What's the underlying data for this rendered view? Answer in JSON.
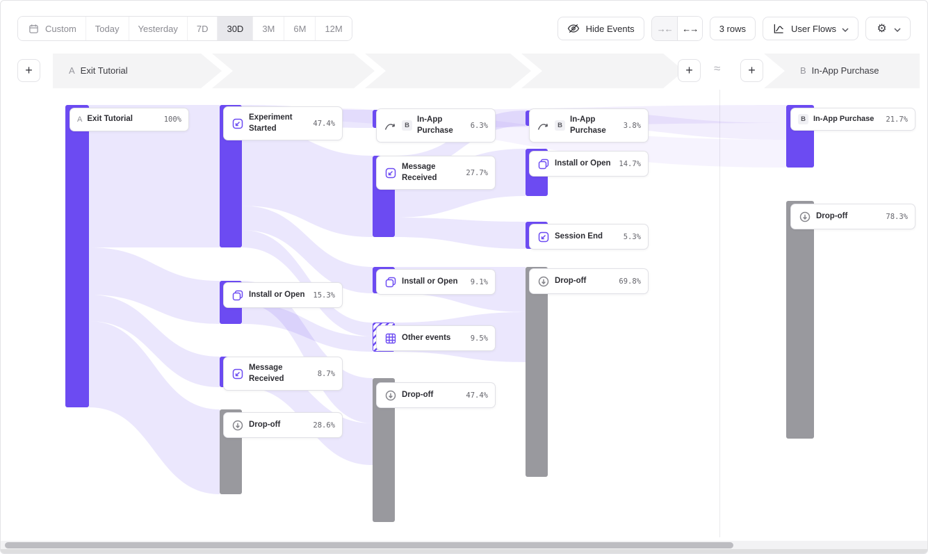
{
  "toolbar": {
    "ranges": [
      {
        "label": "Custom"
      },
      {
        "label": "Today"
      },
      {
        "label": "Yesterday"
      },
      {
        "label": "7D"
      },
      {
        "label": "30D",
        "selected": true
      },
      {
        "label": "3M"
      },
      {
        "label": "6M"
      },
      {
        "label": "12M"
      }
    ],
    "hide_events": "Hide Events",
    "collapse_arrows": "→←",
    "expand_arrows": "←→",
    "rows": "3 rows",
    "view": "User Flows"
  },
  "header": {
    "a_badge": "A",
    "a_label": "Exit Tutorial",
    "b_badge": "B",
    "b_label": "In-App Purchase",
    "approx": "≈",
    "plus": "+"
  },
  "nodes": {
    "c1_start": {
      "badge": "A",
      "label": "Exit Tutorial",
      "pct": "100%"
    },
    "c2_experiment": {
      "label": "Experiment Started",
      "pct": "47.4%"
    },
    "c2_install": {
      "label": "Install or Open",
      "pct": "15.3%"
    },
    "c2_message": {
      "label": "Message Received",
      "pct": "8.7%"
    },
    "c2_dropoff": {
      "label": "Drop-off",
      "pct": "28.6%"
    },
    "c3_purchase": {
      "badge": "B",
      "label": "In-App Purchase",
      "pct": "6.3%"
    },
    "c3_message": {
      "label": "Message Received",
      "pct": "27.7%"
    },
    "c3_install": {
      "label": "Install or Open",
      "pct": "9.1%"
    },
    "c3_other": {
      "label": "Other events",
      "pct": "9.5%"
    },
    "c3_dropoff": {
      "label": "Drop-off",
      "pct": "47.4%"
    },
    "c4_purchase": {
      "badge": "B",
      "label": "In-App Purchase",
      "pct": "3.8%"
    },
    "c4_install": {
      "label": "Install or Open",
      "pct": "14.7%"
    },
    "c4_session": {
      "label": "Session End",
      "pct": "5.3%"
    },
    "c4_dropoff": {
      "label": "Drop-off",
      "pct": "69.8%"
    },
    "b_purchase": {
      "badge": "B",
      "label": "In-App Purchase",
      "pct": "21.7%"
    },
    "b_dropoff": {
      "label": "Drop-off",
      "pct": "78.3%"
    }
  },
  "colors": {
    "accent": "#6C4BF2",
    "dropoff_gray": "#99999e",
    "ribbon": "#7c5cf0",
    "band_gray": "#f4f4f5"
  },
  "icons": [
    "calendar-icon",
    "eye-off-icon",
    "collapse-icon",
    "expand-icon",
    "user-flows-icon",
    "chevron-down-icon",
    "gear-icon",
    "plus-icon",
    "approx-icon",
    "experiment-icon",
    "install-icon",
    "message-icon",
    "purchase-arrow-icon",
    "session-end-icon",
    "grid-icon",
    "dropoff-icon"
  ],
  "flow_links": [
    [
      127,
      150,
      355,
      315,
      150,
      355,
      0.15
    ],
    [
      127,
      355,
      423,
      315,
      403,
      465,
      0.15
    ],
    [
      127,
      423,
      461,
      315,
      512,
      556,
      0.15
    ],
    [
      127,
      461,
      585,
      315,
      588,
      710,
      0.15
    ],
    [
      347,
      150,
      178,
      535,
      157,
      183,
      0.15
    ],
    [
      347,
      178,
      295,
      535,
      223,
      340,
      0.15
    ],
    [
      347,
      295,
      330,
      535,
      383,
      421,
      0.15
    ],
    [
      347,
      330,
      355,
      535,
      463,
      483,
      0.15
    ],
    [
      347,
      403,
      435,
      535,
      543,
      608,
      0.15
    ],
    [
      347,
      435,
      465,
      535,
      483,
      505,
      0.15
    ],
    [
      347,
      512,
      556,
      535,
      608,
      668,
      0.15
    ],
    [
      567,
      223,
      248,
      755,
      158,
      180,
      0.15
    ],
    [
      567,
      248,
      312,
      755,
      213,
      281,
      0.15
    ],
    [
      567,
      312,
      340,
      755,
      318,
      357,
      0.15
    ],
    [
      567,
      383,
      421,
      755,
      383,
      448,
      0.15
    ],
    [
      567,
      463,
      505,
      755,
      448,
      520,
      0.15
    ],
    [
      567,
      157,
      183,
      1130,
      150,
      176,
      0.1
    ],
    [
      787,
      158,
      180,
      1130,
      176,
      200,
      0.1
    ],
    [
      347,
      152,
      170,
      1130,
      200,
      240,
      0.07
    ]
  ]
}
